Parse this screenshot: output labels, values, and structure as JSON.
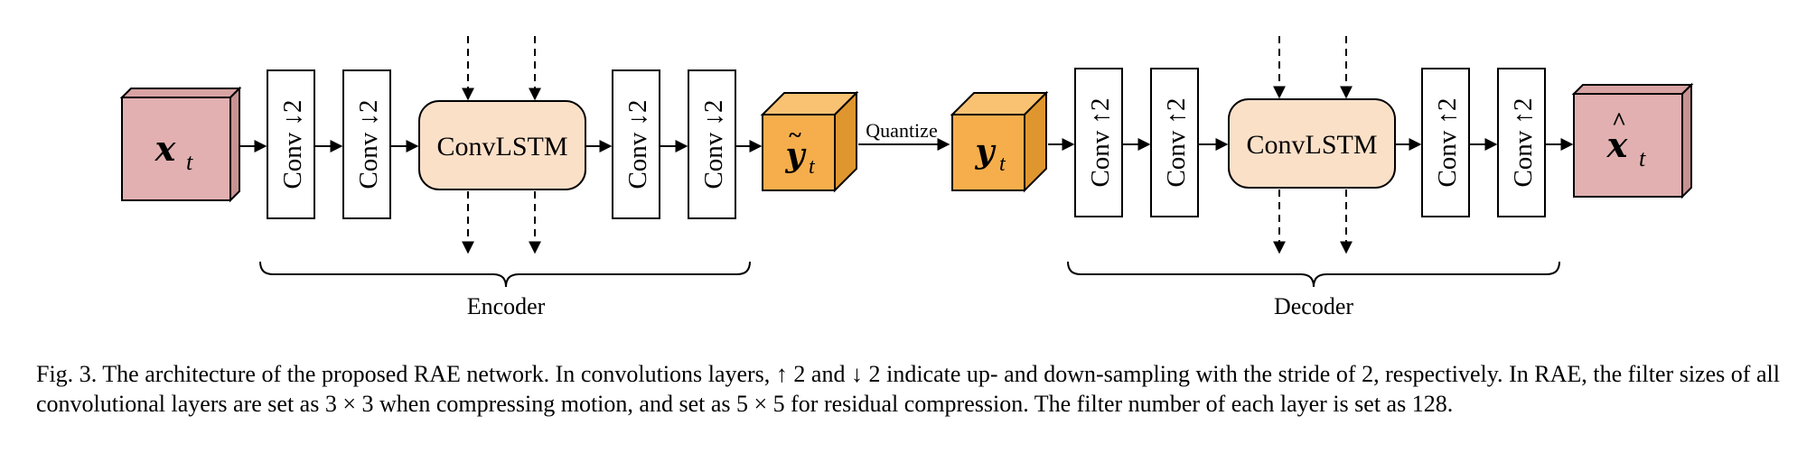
{
  "nodes": {
    "x_input": {
      "main": "x",
      "sub": "t"
    },
    "enc_conv1": "Conv ↓2",
    "enc_conv2": "Conv ↓2",
    "enc_lstm": "ConvLSTM",
    "enc_conv3": "Conv ↓2",
    "enc_conv4": "Conv ↓2",
    "y_tilde": {
      "main": "y",
      "accent": "~",
      "sub": "t"
    },
    "quantize": "Quantize",
    "y": {
      "main": "y",
      "sub": "t"
    },
    "dec_conv1": "Conv ↑2",
    "dec_conv2": "Conv ↑2",
    "dec_lstm": "ConvLSTM",
    "dec_conv3": "Conv ↑2",
    "dec_conv4": "Conv ↑2",
    "x_hat": {
      "main": "x",
      "accent": "^",
      "sub": "t"
    }
  },
  "groups": {
    "encoder": "Encoder",
    "decoder": "Decoder"
  },
  "colors": {
    "io_block": "#e2b0b0",
    "latent_block": "#f6ae4c",
    "lstm_block": "#fbe0c8",
    "line": "#000000"
  },
  "caption": "Fig. 3.  The architecture of the proposed RAE network. In convolutions layers, ↑ 2 and ↓ 2 indicate up- and down-sampling with the stride of 2, respectively. In RAE, the filter sizes of all convolutional layers are set as 3 × 3 when compressing motion, and set as 5 × 5 for residual compression. The filter number of each layer is set as 128."
}
